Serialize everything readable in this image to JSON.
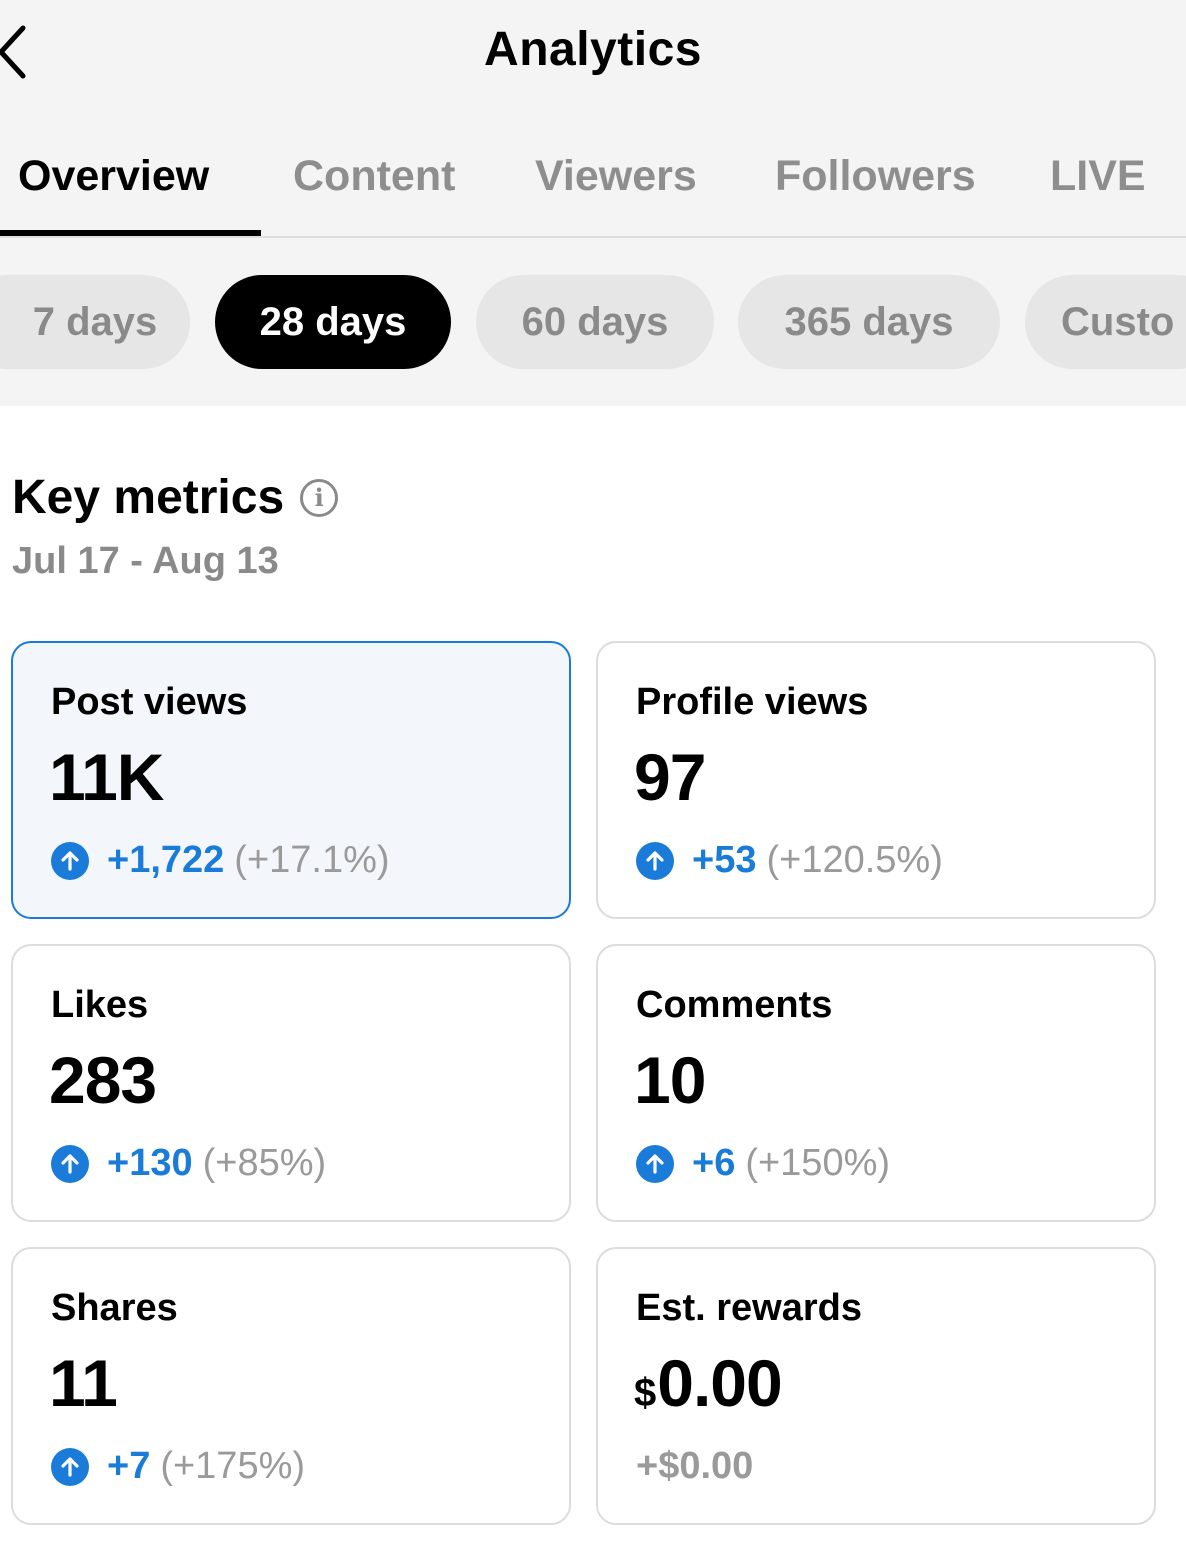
{
  "header": {
    "title": "Analytics"
  },
  "tabs": [
    {
      "label": "Overview"
    },
    {
      "label": "Content"
    },
    {
      "label": "Viewers"
    },
    {
      "label": "Followers"
    },
    {
      "label": "LIVE"
    }
  ],
  "ranges": [
    {
      "label": "7 days"
    },
    {
      "label": "28 days"
    },
    {
      "label": "60 days"
    },
    {
      "label": "365 days"
    },
    {
      "label": "Custo"
    }
  ],
  "key_metrics": {
    "title": "Key metrics",
    "date_range": "Jul 17 - Aug 13",
    "cards": [
      {
        "label": "Post views",
        "value": "11K",
        "delta": "+1,722",
        "pct": "(+17.1%)"
      },
      {
        "label": "Profile views",
        "value": "97",
        "delta": "+53",
        "pct": "(+120.5%)"
      },
      {
        "label": "Likes",
        "value": "283",
        "delta": "+130",
        "pct": "(+85%)"
      },
      {
        "label": "Comments",
        "value": "10",
        "delta": "+6",
        "pct": "(+150%)"
      },
      {
        "label": "Shares",
        "value": "11",
        "delta": "+7",
        "pct": "(+175%)"
      },
      {
        "label": "Est. rewards",
        "currency": "$",
        "value": "0.00",
        "delta": "+$0.00"
      }
    ]
  },
  "colors": {
    "accent": "#1a7cd8",
    "muted": "#8a8a8a",
    "selected_card_bg": "#f3f7fc"
  }
}
